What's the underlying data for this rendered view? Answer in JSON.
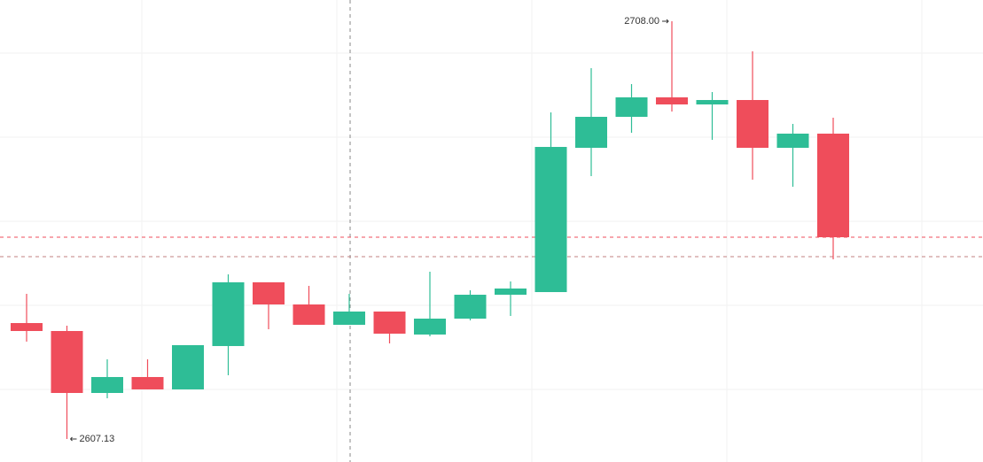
{
  "chart_data": {
    "type": "candlestick",
    "open": [
      2635.12,
      2633.2,
      2618.24,
      2622.09,
      2619.1,
      2629.57,
      2644.96,
      2639.61,
      2634.7,
      2637.9,
      2632.35,
      2636.19,
      2641.96,
      2642.6,
      2677.44,
      2684.92,
      2689.62,
      2687.91,
      2688.98,
      2677.44,
      2680.86
    ],
    "high": [
      2642.18,
      2634.48,
      2626.36,
      2626.36,
      2629.78,
      2646.88,
      2644.96,
      2644.1,
      2642.18,
      2637.9,
      2647.52,
      2643.03,
      2645.17,
      2685.99,
      2696.67,
      2692.83,
      2708.0,
      2690.9,
      2700.73,
      2683.21,
      2684.71
    ],
    "low": [
      2630.64,
      2607.13,
      2616.96,
      2619.1,
      2619.1,
      2622.52,
      2633.63,
      2634.7,
      2634.7,
      2630.21,
      2631.92,
      2635.77,
      2636.83,
      2642.6,
      2670.6,
      2681.07,
      2686.2,
      2679.36,
      2669.75,
      2668.04,
      2650.51
    ],
    "close": [
      2633.2,
      2618.24,
      2622.09,
      2619.1,
      2629.78,
      2644.96,
      2639.61,
      2634.7,
      2637.9,
      2632.56,
      2636.19,
      2641.96,
      2643.46,
      2677.65,
      2684.92,
      2689.62,
      2687.91,
      2688.98,
      2677.44,
      2680.86,
      2655.85
    ],
    "up_color": "#2ebd96",
    "down_color": "#ef4d5b",
    "max_label": "2708.00",
    "min_label": "2607.13",
    "ylim": [
      2601.57,
      2713.13
    ]
  }
}
